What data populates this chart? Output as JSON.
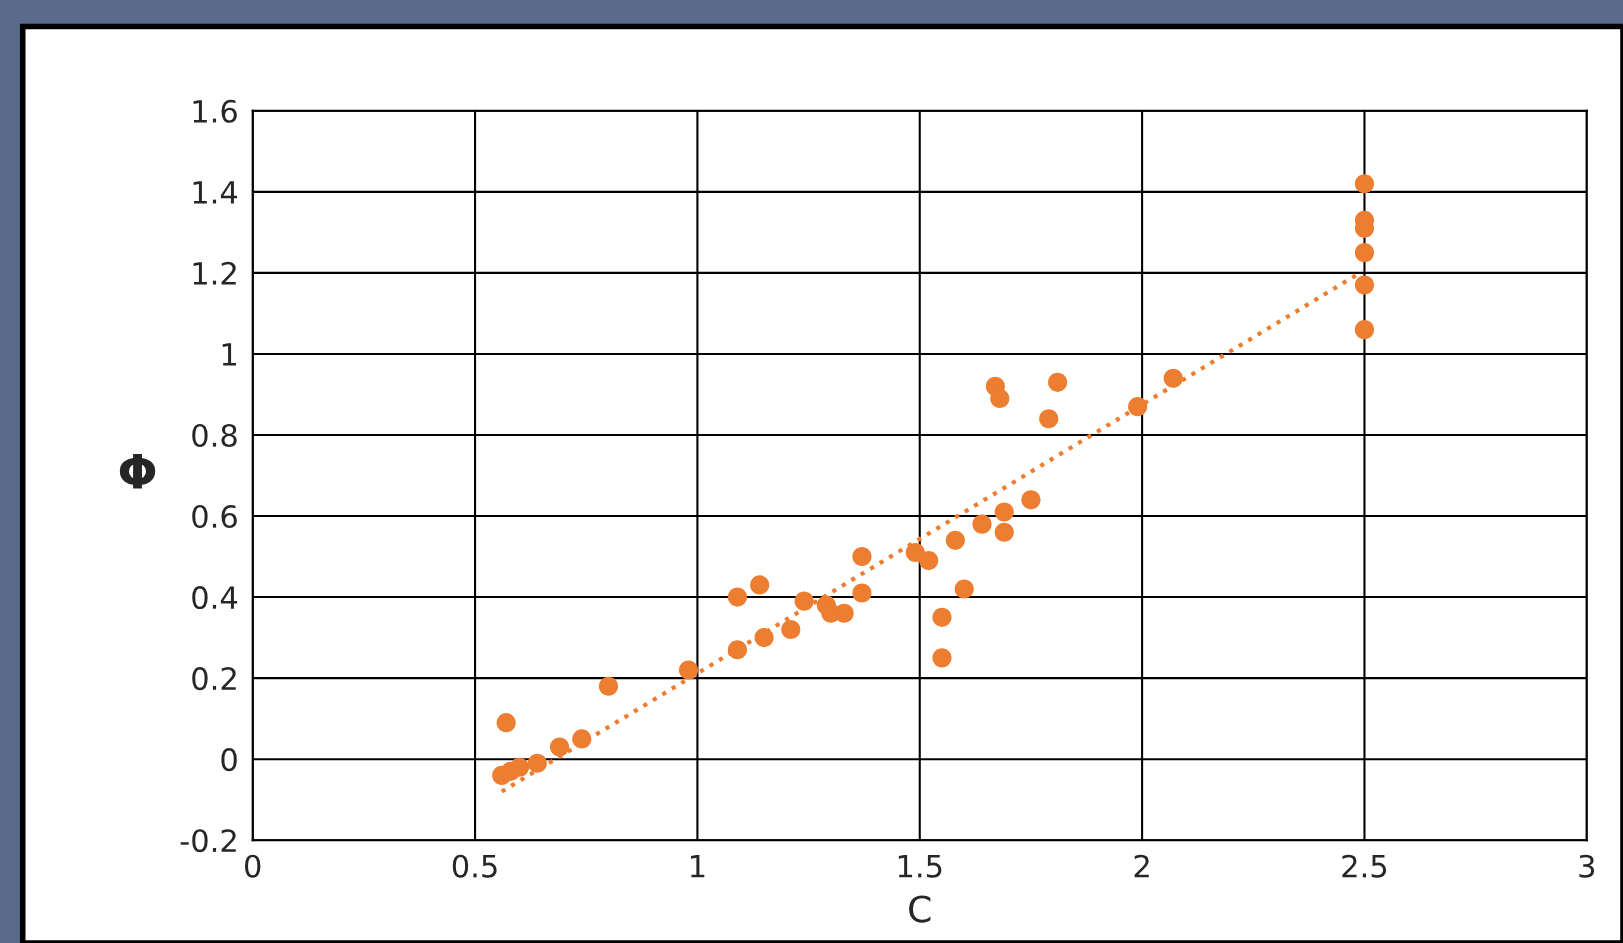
{
  "chart_data": {
    "type": "scatter",
    "xlabel": "C",
    "ylabel": "Φ",
    "xlim": [
      0,
      3
    ],
    "xticks": [
      0,
      0.5,
      1,
      1.5,
      2,
      2.5,
      3
    ],
    "ylim": [
      -0.2,
      1.6
    ],
    "yticks": [
      -0.2,
      0,
      0.2,
      0.4,
      0.6,
      0.8,
      1,
      1.2,
      1.4,
      1.6
    ],
    "grid": true,
    "marker": "circle",
    "series": [
      {
        "color": "#ed7d31",
        "x": [
          0.57,
          0.56,
          0.58,
          0.6,
          0.64,
          0.69,
          0.74,
          0.8,
          0.98,
          1.09,
          1.14,
          1.09,
          1.15,
          1.21,
          1.24,
          1.29,
          1.3,
          1.33,
          1.37,
          1.37,
          1.49,
          1.52,
          1.55,
          1.55,
          1.6,
          1.58,
          1.64,
          1.69,
          1.69,
          1.75,
          1.67,
          1.68,
          1.81,
          1.79,
          1.99,
          2.07,
          2.5,
          2.5,
          2.5,
          2.5,
          2.5,
          2.5
        ],
        "values": [
          0.09,
          -0.04,
          -0.03,
          -0.02,
          -0.01,
          0.03,
          0.05,
          0.18,
          0.22,
          0.4,
          0.43,
          0.27,
          0.3,
          0.32,
          0.39,
          0.38,
          0.36,
          0.36,
          0.41,
          0.5,
          0.51,
          0.49,
          0.35,
          0.25,
          0.42,
          0.54,
          0.58,
          0.61,
          0.56,
          0.64,
          0.92,
          0.89,
          0.93,
          0.84,
          0.87,
          0.94,
          1.42,
          1.33,
          1.31,
          1.25,
          1.17,
          1.06
        ]
      },
      {
        "type": "line",
        "color": "#ed7d31",
        "line_style": "dotted",
        "marker": "none",
        "x": [
          0.56,
          2.49
        ],
        "values": [
          -0.08,
          1.2
        ]
      }
    ]
  }
}
